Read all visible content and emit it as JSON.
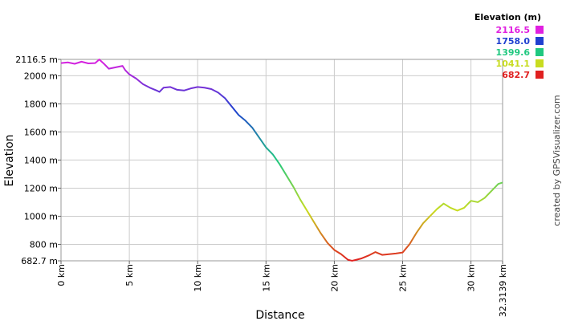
{
  "chart_data": {
    "type": "line",
    "xlabel": "Distance",
    "ylabel": "Elevation",
    "xlim": [
      0,
      32.3139
    ],
    "ylim": [
      682.7,
      2116.5
    ],
    "grid": true,
    "x_ticks": [
      {
        "value": 0,
        "label": "0 km"
      },
      {
        "value": 5,
        "label": "5 km"
      },
      {
        "value": 10,
        "label": "10 km"
      },
      {
        "value": 15,
        "label": "15 km"
      },
      {
        "value": 20,
        "label": "20 km"
      },
      {
        "value": 25,
        "label": "25 km"
      },
      {
        "value": 30,
        "label": "30 km"
      },
      {
        "value": 32.3139,
        "label": "32.3139 km"
      }
    ],
    "y_ticks": [
      {
        "value": 682.7,
        "label": "682.7 m"
      },
      {
        "value": 800,
        "label": "800 m"
      },
      {
        "value": 1000,
        "label": "1000 m"
      },
      {
        "value": 1200,
        "label": "1200 m"
      },
      {
        "value": 1400,
        "label": "1400 m"
      },
      {
        "value": 1600,
        "label": "1600 m"
      },
      {
        "value": 1800,
        "label": "1800 m"
      },
      {
        "value": 2000,
        "label": "2000 m"
      },
      {
        "value": 2116.5,
        "label": "2116.5 m"
      }
    ],
    "series": [
      {
        "x": [
          0,
          0.5,
          1.0,
          1.5,
          2.0,
          2.5,
          2.8,
          3.2,
          3.5,
          4.0,
          4.5,
          4.7,
          5.0,
          5.5,
          6.0,
          6.5,
          7.0,
          7.2,
          7.5,
          8.0,
          8.5,
          9.0,
          9.5,
          10.0,
          10.5,
          11.0,
          11.5,
          12.0,
          12.5,
          13.0,
          13.5,
          14.0,
          14.5,
          15.0,
          15.5,
          16.0,
          16.5,
          17.0,
          17.5,
          18.0,
          18.5,
          19.0,
          19.5,
          20.0,
          20.5,
          21.0,
          21.3,
          21.6,
          22.0,
          22.5,
          23.0,
          23.5,
          24.0,
          24.5,
          25.0,
          25.5,
          26.0,
          26.5,
          27.0,
          27.5,
          28.0,
          28.5,
          29.0,
          29.5,
          30.0,
          30.5,
          31.0,
          31.5,
          32.0,
          32.3139
        ],
        "y": [
          2090,
          2095,
          2085,
          2100,
          2088,
          2090,
          2116,
          2080,
          2050,
          2060,
          2070,
          2040,
          2010,
          1980,
          1940,
          1915,
          1895,
          1885,
          1915,
          1920,
          1900,
          1895,
          1910,
          1920,
          1915,
          1905,
          1880,
          1840,
          1780,
          1720,
          1680,
          1630,
          1560,
          1490,
          1440,
          1370,
          1290,
          1210,
          1120,
          1040,
          960,
          880,
          810,
          760,
          730,
          690,
          683,
          690,
          700,
          720,
          745,
          725,
          730,
          735,
          742,
          800,
          880,
          950,
          1000,
          1050,
          1090,
          1060,
          1040,
          1060,
          1110,
          1100,
          1130,
          1180,
          1230,
          1240
        ]
      }
    ],
    "legend": {
      "title": "Elevation (m)",
      "placement": "top-right",
      "entries": [
        {
          "label": "2116.5",
          "color": "#e020e0"
        },
        {
          "label": "1758.0",
          "color": "#2040d0"
        },
        {
          "label": "1399.6",
          "color": "#20c880"
        },
        {
          "label": "1041.1",
          "color": "#c8dc20"
        },
        {
          "label": "682.7",
          "color": "#e02020"
        }
      ]
    },
    "credit": "created by GPSVisualizer.com"
  }
}
